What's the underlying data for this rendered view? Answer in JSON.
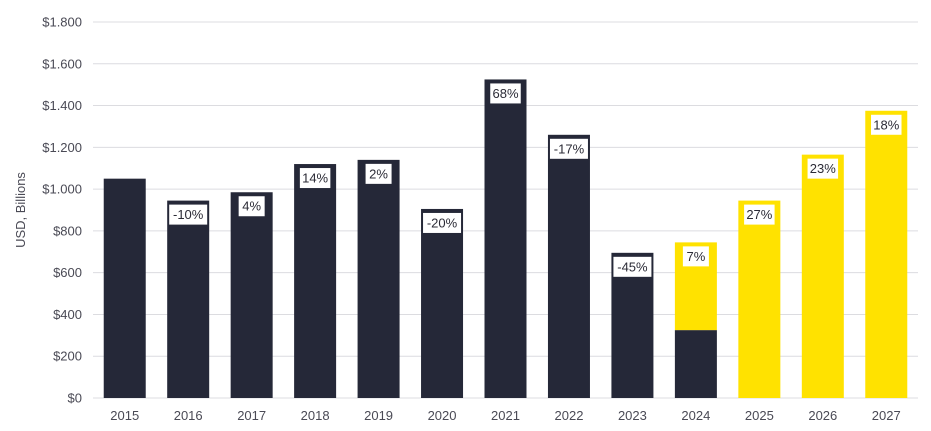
{
  "chart_data": {
    "type": "bar",
    "title": "",
    "xlabel": "",
    "ylabel": "USD, Billions",
    "ylim": [
      0,
      1800
    ],
    "yticks": [
      0,
      200,
      400,
      600,
      800,
      1000,
      1200,
      1400,
      1600,
      1800
    ],
    "ytick_labels": [
      "$0",
      "$200",
      "$400",
      "$600",
      "$800",
      "$1.000",
      "$1.200",
      "$1.400",
      "$1.600",
      "$1.800"
    ],
    "grid": true,
    "categories": [
      "2015",
      "2016",
      "2017",
      "2018",
      "2019",
      "2020",
      "2021",
      "2022",
      "2023",
      "2024",
      "2025",
      "2026",
      "2027"
    ],
    "values": [
      1050,
      945,
      985,
      1120,
      1140,
      905,
      1525,
      1260,
      695,
      745,
      945,
      1165,
      1375
    ],
    "actual_portion": [
      1050,
      945,
      985,
      1120,
      1140,
      905,
      1525,
      1260,
      695,
      325,
      0,
      0,
      0
    ],
    "forecast_portion": [
      0,
      0,
      0,
      0,
      0,
      0,
      0,
      0,
      0,
      420,
      945,
      1165,
      1375
    ],
    "growth_labels": [
      "",
      "-10%",
      "4%",
      "14%",
      "2%",
      "-20%",
      "68%",
      "-17%",
      "-45%",
      "7%",
      "27%",
      "23%",
      "18%"
    ],
    "colors": {
      "actual": "#252838",
      "forecast": "#FFE200",
      "label_bg": "#ffffff",
      "grid": "#dcdce0"
    }
  }
}
